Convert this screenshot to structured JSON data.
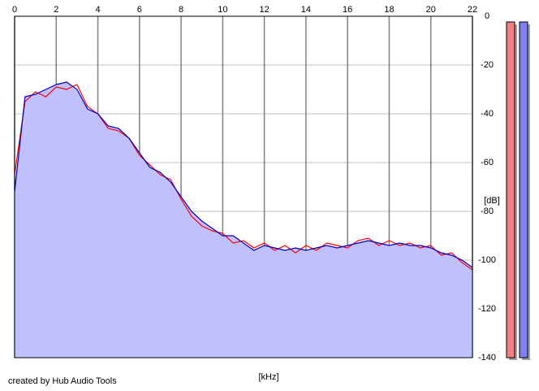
{
  "chart_data": {
    "type": "line",
    "x_label": "[kHz]",
    "y_label": "[dB]",
    "annotation": "created by Hub Audio Tools",
    "xlim": [
      0,
      22
    ],
    "xticks": [
      0,
      2,
      4,
      6,
      8,
      10,
      12,
      14,
      16,
      18,
      20,
      22
    ],
    "ylim": [
      -140,
      0
    ],
    "yticks": [
      0,
      -20,
      -40,
      -60,
      -80,
      -100,
      -120,
      -140
    ],
    "grid": true,
    "fill_color": "#c0c0ff",
    "x": [
      0,
      0.5,
      1,
      1.5,
      2,
      2.5,
      3,
      3.5,
      4,
      4.5,
      5,
      5.5,
      6,
      6.5,
      7,
      7.5,
      8,
      8.5,
      9,
      9.5,
      10,
      10.5,
      11,
      11.5,
      12,
      12.5,
      13,
      13.5,
      14,
      14.5,
      15,
      15.5,
      16,
      16.5,
      17,
      17.5,
      18,
      18.5,
      19,
      19.5,
      20,
      20.5,
      21,
      21.5,
      22
    ],
    "series": [
      {
        "color": "#ff0000",
        "values": [
          -65,
          -35,
          -31,
          -33,
          -29,
          -30,
          -28,
          -37,
          -40,
          -46,
          -47,
          -50,
          -57,
          -61,
          -65,
          -67,
          -75,
          -82,
          -86,
          -88,
          -89,
          -93,
          -92,
          -95,
          -93,
          -96,
          -94,
          -97,
          -94,
          -96,
          -93,
          -94,
          -95,
          -92,
          -91,
          -94,
          -92,
          -94,
          -93,
          -95,
          -94,
          -98,
          -97,
          -101,
          -104
        ]
      },
      {
        "color": "#0000c0",
        "values": [
          -72,
          -33,
          -32,
          -30,
          -28,
          -27,
          -30,
          -38,
          -40,
          -45,
          -46,
          -50,
          -56,
          -62,
          -64,
          -68,
          -74,
          -80,
          -84,
          -87,
          -90,
          -90,
          -93,
          -96,
          -94,
          -95,
          -96,
          -95,
          -96,
          -95,
          -94,
          -95,
          -94,
          -93,
          -92,
          -93,
          -94,
          -93,
          -94,
          -94,
          -95,
          -97,
          -98,
          -100,
          -103
        ]
      }
    ]
  }
}
